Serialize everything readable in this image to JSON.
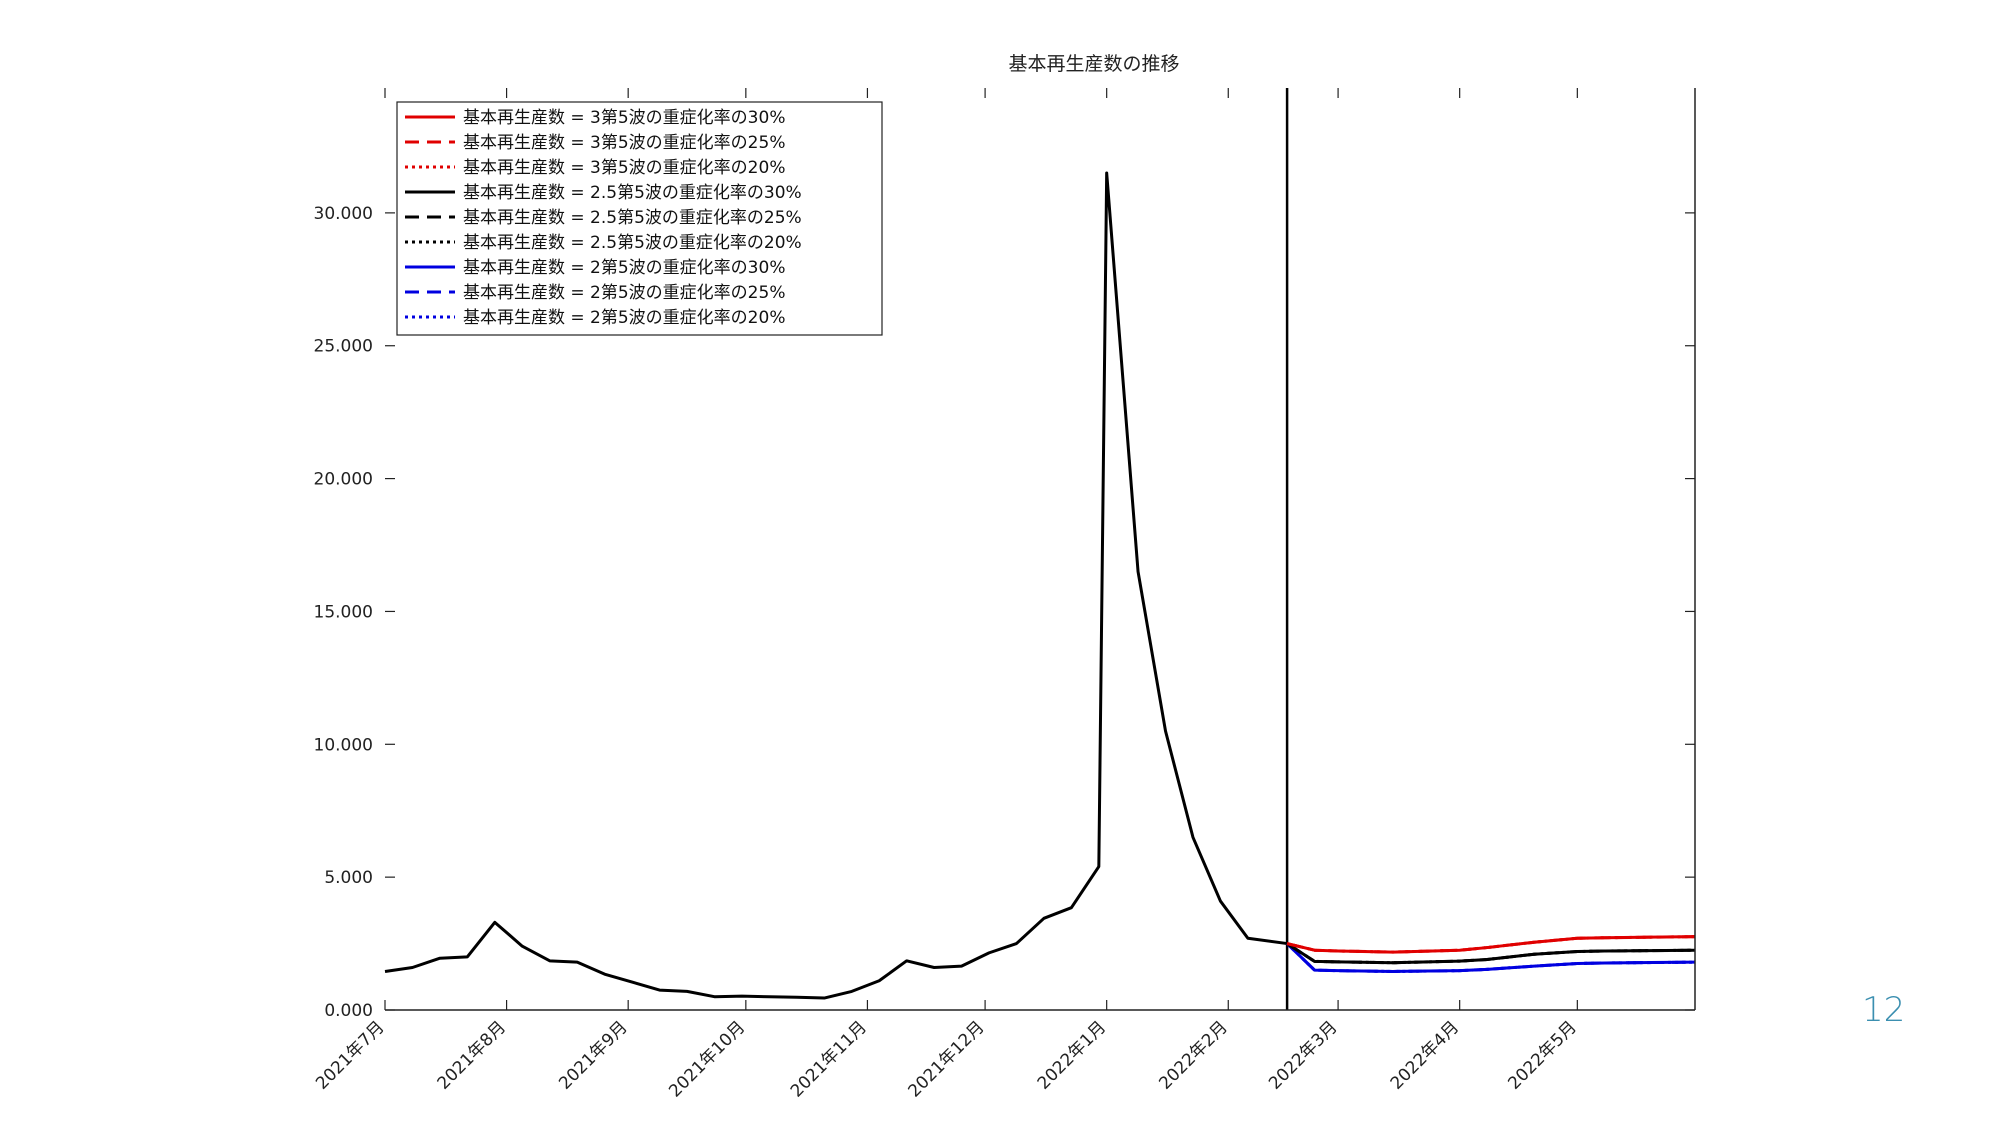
{
  "page_number": "12",
  "colors": {
    "red": "#e00000",
    "black": "#000000",
    "blue": "#0000e0",
    "axis": "#222222"
  },
  "chart_data": {
    "type": "line",
    "title": "基本再生産数の推移",
    "xlabel": "",
    "ylabel": "",
    "ylim": [
      0,
      34700
    ],
    "yticks": [
      0,
      5000,
      10000,
      15000,
      20000,
      25000,
      30000
    ],
    "ytick_labels": [
      "0.000",
      "5.000",
      "10.000",
      "15.000",
      "20.000",
      "25.000",
      "30.000"
    ],
    "xlim": [
      "2021-07-01",
      "2022-05-31"
    ],
    "xticks": [
      "2021-07-01",
      "2021-08-01",
      "2021-09-01",
      "2021-10-01",
      "2021-11-01",
      "2021-12-01",
      "2022-01-01",
      "2022-02-01",
      "2022-03-01",
      "2022-04-01",
      "2022-05-01"
    ],
    "xtick_labels": [
      "2021年7月",
      "2021年8月",
      "2021年9月",
      "2021年10月",
      "2021年11月",
      "2021年12月",
      "2022年1月",
      "2022年2月",
      "2022年3月",
      "2022年4月",
      "2022年5月"
    ],
    "vline": "2022-02-16",
    "legend_position": "top-left",
    "history": {
      "x": [
        "2021-07-01",
        "2021-07-08",
        "2021-07-15",
        "2021-07-22",
        "2021-07-29",
        "2021-08-05",
        "2021-08-12",
        "2021-08-19",
        "2021-08-26",
        "2021-09-02",
        "2021-09-09",
        "2021-09-16",
        "2021-09-23",
        "2021-09-30",
        "2021-10-07",
        "2021-10-14",
        "2021-10-21",
        "2021-10-28",
        "2021-11-04",
        "2021-11-11",
        "2021-11-18",
        "2021-11-25",
        "2021-12-02",
        "2021-12-09",
        "2021-12-16",
        "2021-12-23",
        "2021-12-30",
        "2022-01-01",
        "2022-01-09",
        "2022-01-16",
        "2022-01-23",
        "2022-01-30",
        "2022-02-06",
        "2022-02-16"
      ],
      "y": [
        1450,
        1600,
        1950,
        2000,
        3300,
        2400,
        1850,
        1800,
        1350,
        1050,
        750,
        700,
        500,
        520,
        500,
        480,
        450,
        700,
        1100,
        1850,
        1600,
        1650,
        2150,
        2500,
        3450,
        3850,
        5400,
        31500,
        16500,
        10500,
        6500,
        4100,
        2700,
        2500
      ]
    },
    "series": [
      {
        "name": "基本再生産数 = 3第5波の重症化率の30%",
        "color": "red",
        "dash": "solid",
        "x": [
          "2022-02-16",
          "2022-02-23",
          "2022-03-01",
          "2022-03-15",
          "2022-04-01",
          "2022-04-08",
          "2022-04-20",
          "2022-05-01",
          "2022-05-08",
          "2022-05-31"
        ],
        "y": [
          2500,
          2250,
          2220,
          2180,
          2250,
          2350,
          2550,
          2700,
          2720,
          2760
        ]
      },
      {
        "name": "基本再生産数 = 3第5波の重症化率の25%",
        "color": "red",
        "dash": "dashed",
        "x": [
          "2022-02-16",
          "2022-02-23",
          "2022-03-01",
          "2022-03-15",
          "2022-04-01",
          "2022-04-08",
          "2022-04-20",
          "2022-05-01",
          "2022-05-08",
          "2022-05-31"
        ],
        "y": [
          2500,
          2250,
          2220,
          2180,
          2250,
          2350,
          2550,
          2700,
          2720,
          2760
        ]
      },
      {
        "name": "基本再生産数 = 3第5波の重症化率の20%",
        "color": "red",
        "dash": "dotted",
        "x": [
          "2022-02-16",
          "2022-02-23",
          "2022-03-01",
          "2022-03-15",
          "2022-04-01",
          "2022-04-08",
          "2022-04-20",
          "2022-05-01",
          "2022-05-08",
          "2022-05-31"
        ],
        "y": [
          2500,
          2250,
          2220,
          2180,
          2250,
          2350,
          2550,
          2700,
          2720,
          2760
        ]
      },
      {
        "name": "基本再生産数 = 2.5第5波の重症化率の30%",
        "color": "black",
        "dash": "solid",
        "x": [
          "2022-02-16",
          "2022-02-23",
          "2022-03-01",
          "2022-03-15",
          "2022-04-01",
          "2022-04-08",
          "2022-04-20",
          "2022-05-01",
          "2022-05-08",
          "2022-05-31"
        ],
        "y": [
          2500,
          1830,
          1810,
          1780,
          1840,
          1900,
          2100,
          2200,
          2220,
          2250
        ]
      },
      {
        "name": "基本再生産数 = 2.5第5波の重症化率の25%",
        "color": "black",
        "dash": "dashed",
        "x": [
          "2022-02-16",
          "2022-02-23",
          "2022-03-01",
          "2022-03-15",
          "2022-04-01",
          "2022-04-08",
          "2022-04-20",
          "2022-05-01",
          "2022-05-08",
          "2022-05-31"
        ],
        "y": [
          2500,
          1830,
          1810,
          1780,
          1840,
          1900,
          2100,
          2200,
          2220,
          2250
        ]
      },
      {
        "name": "基本再生産数 = 2.5第5波の重症化率の20%",
        "color": "black",
        "dash": "dotted",
        "x": [
          "2022-02-16",
          "2022-02-23",
          "2022-03-01",
          "2022-03-15",
          "2022-04-01",
          "2022-04-08",
          "2022-04-20",
          "2022-05-01",
          "2022-05-08",
          "2022-05-31"
        ],
        "y": [
          2500,
          1830,
          1810,
          1780,
          1840,
          1900,
          2100,
          2200,
          2220,
          2250
        ]
      },
      {
        "name": "基本再生産数 = 2第5波の重症化率の30%",
        "color": "blue",
        "dash": "solid",
        "x": [
          "2022-02-16",
          "2022-02-23",
          "2022-03-01",
          "2022-03-15",
          "2022-04-01",
          "2022-04-08",
          "2022-04-20",
          "2022-05-01",
          "2022-05-08",
          "2022-05-31"
        ],
        "y": [
          2500,
          1500,
          1480,
          1450,
          1480,
          1530,
          1650,
          1750,
          1770,
          1800
        ]
      },
      {
        "name": "基本再生産数 = 2第5波の重症化率の25%",
        "color": "blue",
        "dash": "dashed",
        "x": [
          "2022-02-16",
          "2022-02-23",
          "2022-03-01",
          "2022-03-15",
          "2022-04-01",
          "2022-04-08",
          "2022-04-20",
          "2022-05-01",
          "2022-05-08",
          "2022-05-31"
        ],
        "y": [
          2500,
          1500,
          1480,
          1450,
          1480,
          1530,
          1650,
          1750,
          1770,
          1800
        ]
      },
      {
        "name": "基本再生産数 = 2第5波の重症化率の20%",
        "color": "blue",
        "dash": "dotted",
        "x": [
          "2022-02-16",
          "2022-02-23",
          "2022-03-01",
          "2022-03-15",
          "2022-04-01",
          "2022-04-08",
          "2022-04-20",
          "2022-05-01",
          "2022-05-08",
          "2022-05-31"
        ],
        "y": [
          2500,
          1500,
          1480,
          1450,
          1480,
          1530,
          1650,
          1750,
          1770,
          1800
        ]
      }
    ]
  }
}
